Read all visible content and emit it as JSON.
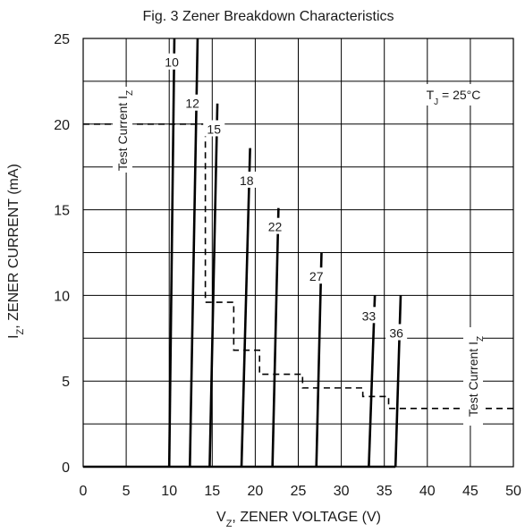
{
  "chart_data": {
    "type": "line",
    "title": "Fig. 3 Zener Breakdown Characteristics",
    "xlabel": "V_Z, ZENER VOLTAGE (V)",
    "ylabel": "I_Z, ZENER CURRENT (mA)",
    "xlim": [
      0,
      50
    ],
    "ylim": [
      0,
      25
    ],
    "xticks": [
      0,
      5,
      10,
      15,
      20,
      25,
      30,
      35,
      40,
      45,
      50
    ],
    "yticks": [
      0,
      5,
      10,
      15,
      20,
      25
    ],
    "grid": true,
    "condition": {
      "text": "T",
      "sub": "J",
      "rest": " = 25°C"
    },
    "series": [
      {
        "name": "10",
        "x": [
          10.0,
          10.6
        ],
        "y": [
          0,
          25
        ],
        "label_at": [
          10.3,
          23.5
        ]
      },
      {
        "name": "12",
        "x": [
          12.4,
          13.3
        ],
        "y": [
          0,
          25
        ],
        "label_at": [
          12.7,
          21.1
        ]
      },
      {
        "name": "15",
        "x": [
          14.7,
          15.6
        ],
        "y": [
          0,
          21.2
        ],
        "label_at": [
          15.2,
          19.6
        ]
      },
      {
        "name": "18",
        "x": [
          18.4,
          19.4
        ],
        "y": [
          0,
          18.6
        ],
        "label_at": [
          19.0,
          16.6
        ]
      },
      {
        "name": "22",
        "x": [
          22.0,
          22.7
        ],
        "y": [
          0,
          15.1
        ],
        "label_at": [
          22.3,
          13.9
        ]
      },
      {
        "name": "27",
        "x": [
          27.1,
          27.7
        ],
        "y": [
          0,
          12.5
        ],
        "label_at": [
          27.1,
          11.0
        ]
      },
      {
        "name": "33",
        "x": [
          33.2,
          33.9
        ],
        "y": [
          0,
          10.0
        ],
        "label_at": [
          33.2,
          8.7
        ]
      },
      {
        "name": "36",
        "x": [
          36.3,
          36.9
        ],
        "y": [
          0,
          10.0
        ],
        "label_at": [
          36.4,
          7.7
        ]
      }
    ],
    "test_current": {
      "label": {
        "text": "Test Current I",
        "sub": "Z"
      },
      "steps": [
        {
          "x_from": 0,
          "x_to": 14.2,
          "y": 20.0
        },
        {
          "x_from": 14.2,
          "x_to": 17.5,
          "y": 9.6
        },
        {
          "x_from": 17.5,
          "x_to": 20.5,
          "y": 6.8
        },
        {
          "x_from": 20.5,
          "x_to": 25.5,
          "y": 5.4
        },
        {
          "x_from": 25.5,
          "x_to": 32.5,
          "y": 4.6
        },
        {
          "x_from": 32.5,
          "x_to": 35.5,
          "y": 4.1
        },
        {
          "x_from": 35.5,
          "x_to": 50,
          "y": 3.4
        }
      ]
    }
  }
}
